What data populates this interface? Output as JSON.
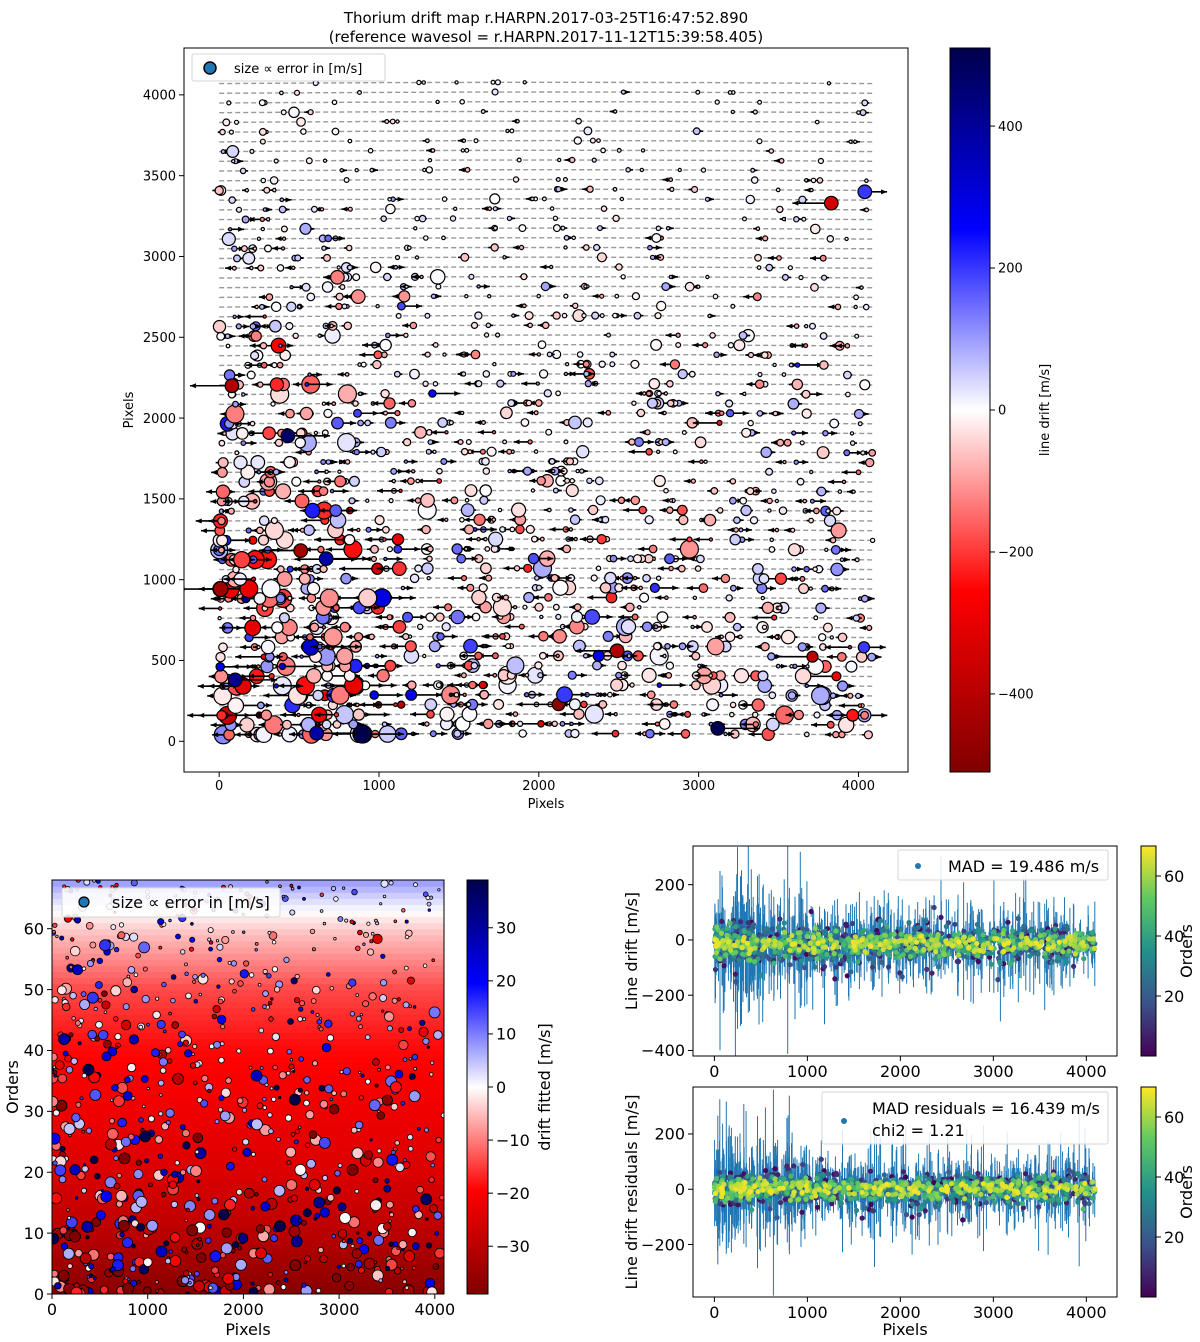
{
  "chart_data": [
    {
      "type": "scatter",
      "title": "Thorium drift map r.HARPN.2017-03-25T16:47:52.890",
      "subtitle": "(reference wavesol = r.HARPN.2017-11-12T15:39:58.405)",
      "xlabel": "Pixels",
      "ylabel": "Pixels",
      "xlim": [
        -220,
        4310
      ],
      "ylim": [
        -190,
        4290
      ],
      "xticks": [
        "0",
        "1000",
        "2000",
        "3000",
        "4000"
      ],
      "yticks": [
        "0",
        "500",
        "1000",
        "1500",
        "2000",
        "2500",
        "3000",
        "3500",
        "4000"
      ],
      "legend": "size ∝ error in [m/s]",
      "legend_position": "top-left",
      "marker_description": "line positions along 68 dashed order traces (x 0-4096); markers coloured by line drift, arrows show drift direction and magnitude",
      "n_orders": 68,
      "order_y_range": [
        40,
        4070
      ],
      "colorbar": {
        "label": "line drift [m/s]",
        "range": [
          -510,
          510
        ],
        "ticks": [
          "400",
          "200",
          "0",
          "−200",
          "−400"
        ],
        "colormap": "seismic_r"
      },
      "highlighted_points": [
        {
          "x": 80,
          "y": 2200,
          "drift": -420
        },
        {
          "x": 430,
          "y": 1890,
          "drift": 470
        },
        {
          "x": 510,
          "y": 1180,
          "drift": -440
        },
        {
          "x": 2490,
          "y": 560,
          "drift": -420
        },
        {
          "x": 3120,
          "y": 80,
          "drift": 500
        },
        {
          "x": 610,
          "y": 50,
          "drift": 380
        },
        {
          "x": 100,
          "y": 380,
          "drift": 420
        },
        {
          "x": 3830,
          "y": 3330,
          "drift": -350
        },
        {
          "x": 4040,
          "y": 3400,
          "drift": 200
        },
        {
          "x": 670,
          "y": 1130,
          "drift": 380
        }
      ]
    },
    {
      "type": "heatmap",
      "xlabel": "Pixels",
      "ylabel": "Orders",
      "xlim": [
        0,
        4096
      ],
      "ylim": [
        0,
        68
      ],
      "xticks": [
        "0",
        "1000",
        "2000",
        "3000",
        "4000"
      ],
      "yticks": [
        "0",
        "10",
        "20",
        "30",
        "40",
        "50",
        "60"
      ],
      "legend": "size ∝ error in [m/s]",
      "legend_position": "top-left",
      "fitted_drift_by_order": [
        [
          0,
          -38
        ],
        [
          10,
          -30
        ],
        [
          20,
          -25
        ],
        [
          30,
          -22
        ],
        [
          40,
          -19
        ],
        [
          50,
          -14
        ],
        [
          60,
          -4
        ],
        [
          65,
          3
        ],
        [
          68,
          8
        ]
      ],
      "colorbar": {
        "label": "drift fitted [m/s]",
        "range": [
          -39,
          39
        ],
        "ticks": [
          "30",
          "20",
          "10",
          "0",
          "−10",
          "−20",
          "−30"
        ],
        "colormap": "seismic_r"
      }
    },
    {
      "type": "scatter",
      "xlabel": "",
      "ylabel": "Line drift [m/s]",
      "xlim": [
        -230,
        4330
      ],
      "ylim": [
        -420,
        340
      ],
      "xticks": [
        "0",
        "1000",
        "2000",
        "3000",
        "4000"
      ],
      "yticks": [
        "200",
        "0",
        "−200",
        "−400"
      ],
      "legend": "MAD = 19.486 m/s",
      "legend_position": "top-right",
      "center": -15,
      "spread": 19.486,
      "error_bar_scale": 90,
      "colorbar": {
        "label": "Orders",
        "range": [
          0,
          70
        ],
        "ticks": [
          "60",
          "40",
          "20"
        ],
        "colormap": "viridis"
      }
    },
    {
      "type": "scatter",
      "xlabel": "Pixels",
      "ylabel": "Line drift residuals [m/s]",
      "xlim": [
        -230,
        4330
      ],
      "ylim": [
        -390,
        370
      ],
      "xticks": [
        "0",
        "1000",
        "2000",
        "3000",
        "4000"
      ],
      "yticks": [
        "200",
        "0",
        "−200"
      ],
      "legend": [
        "MAD residuals = 16.439 m/s",
        "chi2 = 1.21"
      ],
      "legend_position": "top-right",
      "center": 0,
      "spread": 16.439,
      "error_bar_scale": 90,
      "colorbar": {
        "label": "Orders",
        "range": [
          0,
          70
        ],
        "ticks": [
          "60",
          "40",
          "20"
        ],
        "colormap": "viridis"
      }
    }
  ]
}
